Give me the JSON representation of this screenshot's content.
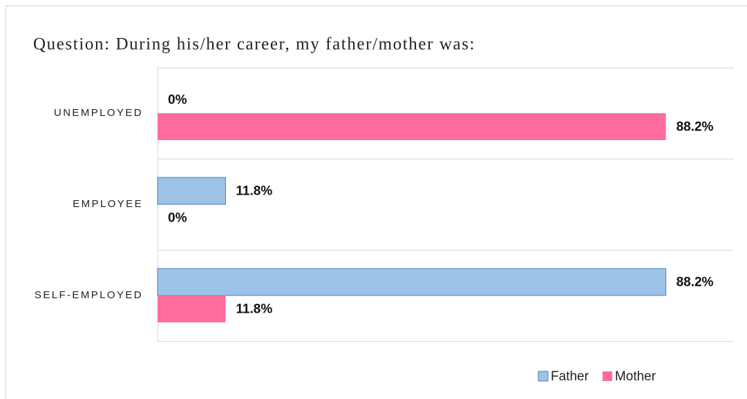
{
  "chart_data": {
    "type": "barh",
    "title": "Question: During his/her career, my father/mother was:",
    "categories": [
      "UNEMPLOYED",
      "EMPLOYEE",
      "SELF-EMPLOYED"
    ],
    "series": [
      {
        "name": "Father",
        "color": "#9dc3e6",
        "edgecolor": "#4a7ebb",
        "values": [
          0,
          11.8,
          88.2
        ],
        "value_labels": [
          "0%",
          "11.8%",
          "88.2%"
        ]
      },
      {
        "name": "Mother",
        "color": "#ff6b9a",
        "values": [
          88.2,
          0,
          11.8
        ],
        "value_labels": [
          "88.2%",
          "0%",
          "11.8%"
        ]
      }
    ],
    "xlim": [
      0,
      100
    ],
    "legend": "bottom-right"
  }
}
